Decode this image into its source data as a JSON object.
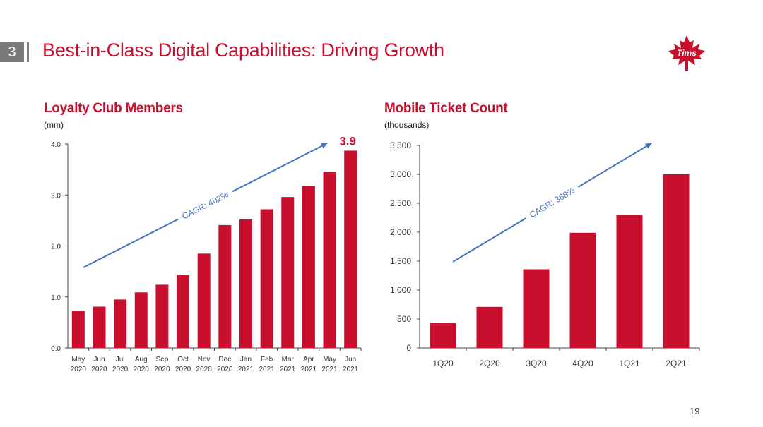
{
  "header": {
    "section_number": "3",
    "title": "Best-in-Class Digital Capabilities: Driving Growth",
    "logo_text": "Tims"
  },
  "colors": {
    "accent": "#c8102e",
    "arrow": "#4472c4",
    "section_box": "#7a7a7a"
  },
  "page_number": "19",
  "chart_data": [
    {
      "type": "bar",
      "title": "Loyalty Club Members",
      "ylabel": "(mm)",
      "categories": [
        [
          "May",
          "2020"
        ],
        [
          "Jun",
          "2020"
        ],
        [
          "Jul",
          "2020"
        ],
        [
          "Aug",
          "2020"
        ],
        [
          "Sep",
          "2020"
        ],
        [
          "Oct",
          "2020"
        ],
        [
          "Nov",
          "2020"
        ],
        [
          "Dec",
          "2020"
        ],
        [
          "Jan",
          "2021"
        ],
        [
          "Feb",
          "2021"
        ],
        [
          "Mar",
          "2021"
        ],
        [
          "Apr",
          "2021"
        ],
        [
          "May",
          "2021"
        ],
        [
          "Jun",
          "2021"
        ]
      ],
      "values": [
        0.73,
        0.81,
        0.95,
        1.09,
        1.24,
        1.43,
        1.85,
        2.41,
        2.52,
        2.72,
        2.96,
        3.17,
        3.46,
        3.87
      ],
      "ylim": [
        0,
        4
      ],
      "yticks": [
        "0.0",
        "1.0",
        "2.0",
        "3.0",
        "4.0"
      ],
      "ytick_values": [
        0,
        1,
        2,
        3,
        4
      ],
      "data_label": "3.9",
      "annotation": "CAGR: 402%",
      "grid": false
    },
    {
      "type": "bar",
      "title": "Mobile Ticket Count",
      "ylabel": "(thousands)",
      "categories": [
        "1Q20",
        "2Q20",
        "3Q20",
        "4Q20",
        "1Q21",
        "2Q21"
      ],
      "values": [
        430,
        710,
        1360,
        1990,
        2300,
        3000
      ],
      "ylim": [
        0,
        3500
      ],
      "yticks": [
        "0",
        "500",
        "1,000",
        "1,500",
        "2,000",
        "2,500",
        "3,000",
        "3,500"
      ],
      "ytick_values": [
        0,
        500,
        1000,
        1500,
        2000,
        2500,
        3000,
        3500
      ],
      "annotation": "CAGR: 368%",
      "grid": false
    }
  ]
}
